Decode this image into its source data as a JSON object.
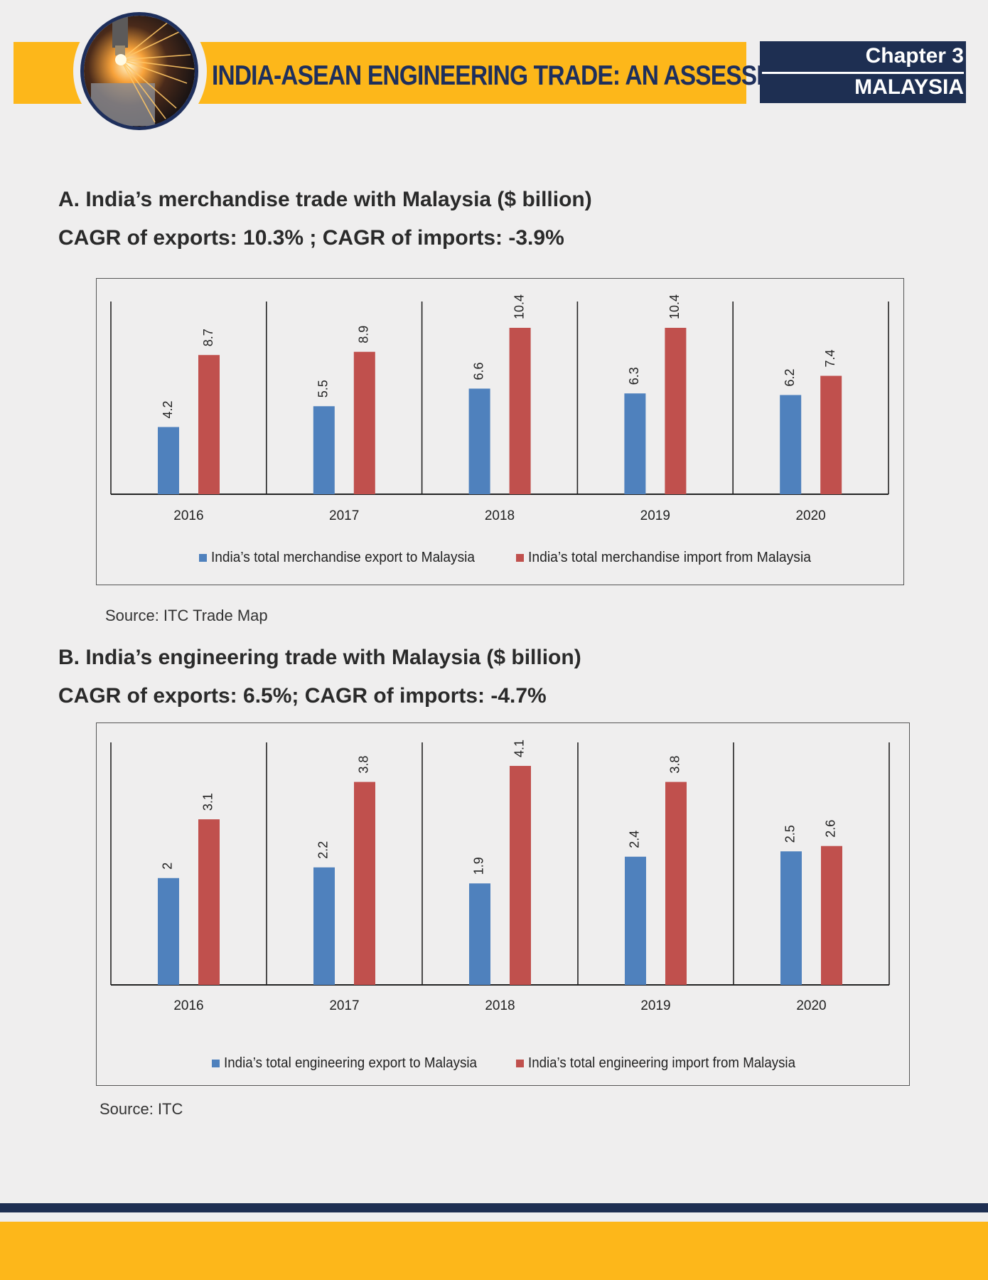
{
  "header": {
    "title": "INDIA-ASEAN ENGINEERING TRADE: AN ASSESSMENT",
    "chapter": "Chapter 3",
    "country": "MALAYSIA",
    "logo_icon": "laser-cutting-sparks-icon"
  },
  "section_a": {
    "title": "A.  India’s merchandise trade with Malaysia ($ billion)",
    "subtitle": "CAGR of exports: 10.3% ; CAGR of imports: -3.9%",
    "source": "Source: ITC Trade Map"
  },
  "section_b": {
    "title": "B. India’s engineering trade with Malaysia ($ billion)",
    "subtitle": "CAGR of exports: 6.5%; CAGR of imports: -4.7%",
    "source": "Source: ITC"
  },
  "chart_data": [
    {
      "type": "bar",
      "categories": [
        "2016",
        "2017",
        "2018",
        "2019",
        "2020"
      ],
      "series": [
        {
          "name": "India’s total merchandise export to Malaysia",
          "values": [
            4.2,
            5.5,
            6.6,
            6.3,
            6.2
          ],
          "labels": [
            "4.2",
            "5.5",
            "6.6",
            "6.3",
            "6.2"
          ],
          "color": "#4f81bd"
        },
        {
          "name": "India’s total merchandise import from Malaysia",
          "values": [
            8.7,
            8.9,
            10.4,
            10.4,
            7.4
          ],
          "labels": [
            "8.7",
            "8.9",
            "10.4",
            "10.4",
            "7.4"
          ],
          "color": "#c0504d"
        }
      ],
      "ylim": [
        0,
        10.4
      ],
      "legend": "bottom",
      "grid": false
    },
    {
      "type": "bar",
      "categories": [
        "2016",
        "2017",
        "2018",
        "2019",
        "2020"
      ],
      "series": [
        {
          "name": "India’s total engineering export to Malaysia",
          "values": [
            2,
            2.2,
            1.9,
            2.4,
            2.5
          ],
          "labels": [
            "2",
            "2.2",
            "1.9",
            "2.4",
            "2.5"
          ],
          "color": "#4f81bd"
        },
        {
          "name": "India’s total engineering import from Malaysia",
          "values": [
            3.1,
            3.8,
            4.1,
            3.8,
            2.6
          ],
          "labels": [
            "3.1",
            "3.8",
            "4.1",
            "3.8",
            "2.6"
          ],
          "color": "#c0504d"
        }
      ],
      "ylim": [
        0,
        4.5
      ],
      "legend": "bottom",
      "grid": false
    }
  ]
}
